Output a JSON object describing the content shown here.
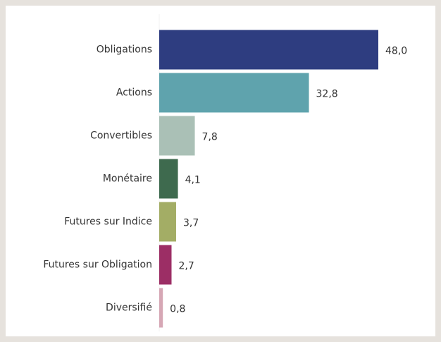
{
  "chart_data": {
    "type": "barh",
    "categories": [
      "Obligations",
      "Actions",
      "Convertibles",
      "Monétaire",
      "Futures sur Indice",
      "Futures sur Obligation",
      "Diversifié"
    ],
    "values": [
      48.0,
      32.8,
      7.8,
      4.1,
      3.7,
      2.7,
      0.8
    ],
    "value_labels": [
      "48,0",
      "32,8",
      "7,8",
      "4,1",
      "3,7",
      "2,7",
      "0,8"
    ],
    "colors": [
      "#2e3d80",
      "#5fa3ad",
      "#aac0b6",
      "#3e6a4e",
      "#a3ad65",
      "#9c2e65",
      "#d6a7b5"
    ]
  }
}
